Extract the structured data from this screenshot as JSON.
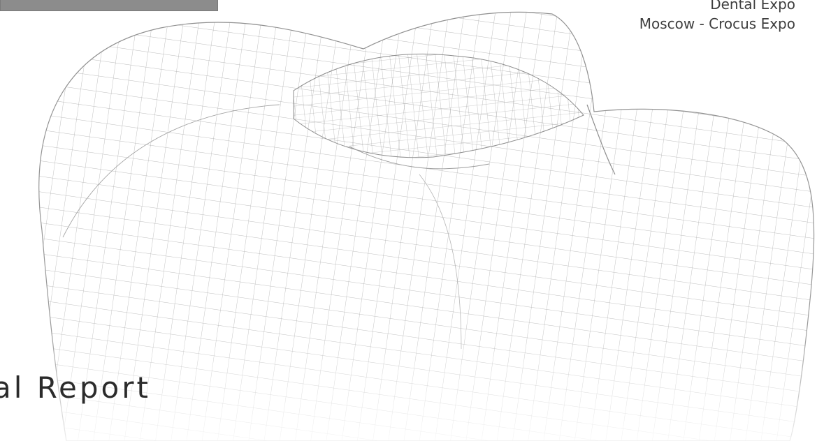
{
  "event": {
    "line_partial": "Dental Expo",
    "location": "Moscow - Crocus Expo"
  },
  "report": {
    "title_partial": "al Report"
  },
  "colors": {
    "text_dark": "#2b2b2b",
    "text_event": "#3e3e3e",
    "top_bar": "#8c8c8c",
    "mesh": "#9a9a9a"
  },
  "illustration": {
    "icon": "wireframe-molar-tooth"
  }
}
